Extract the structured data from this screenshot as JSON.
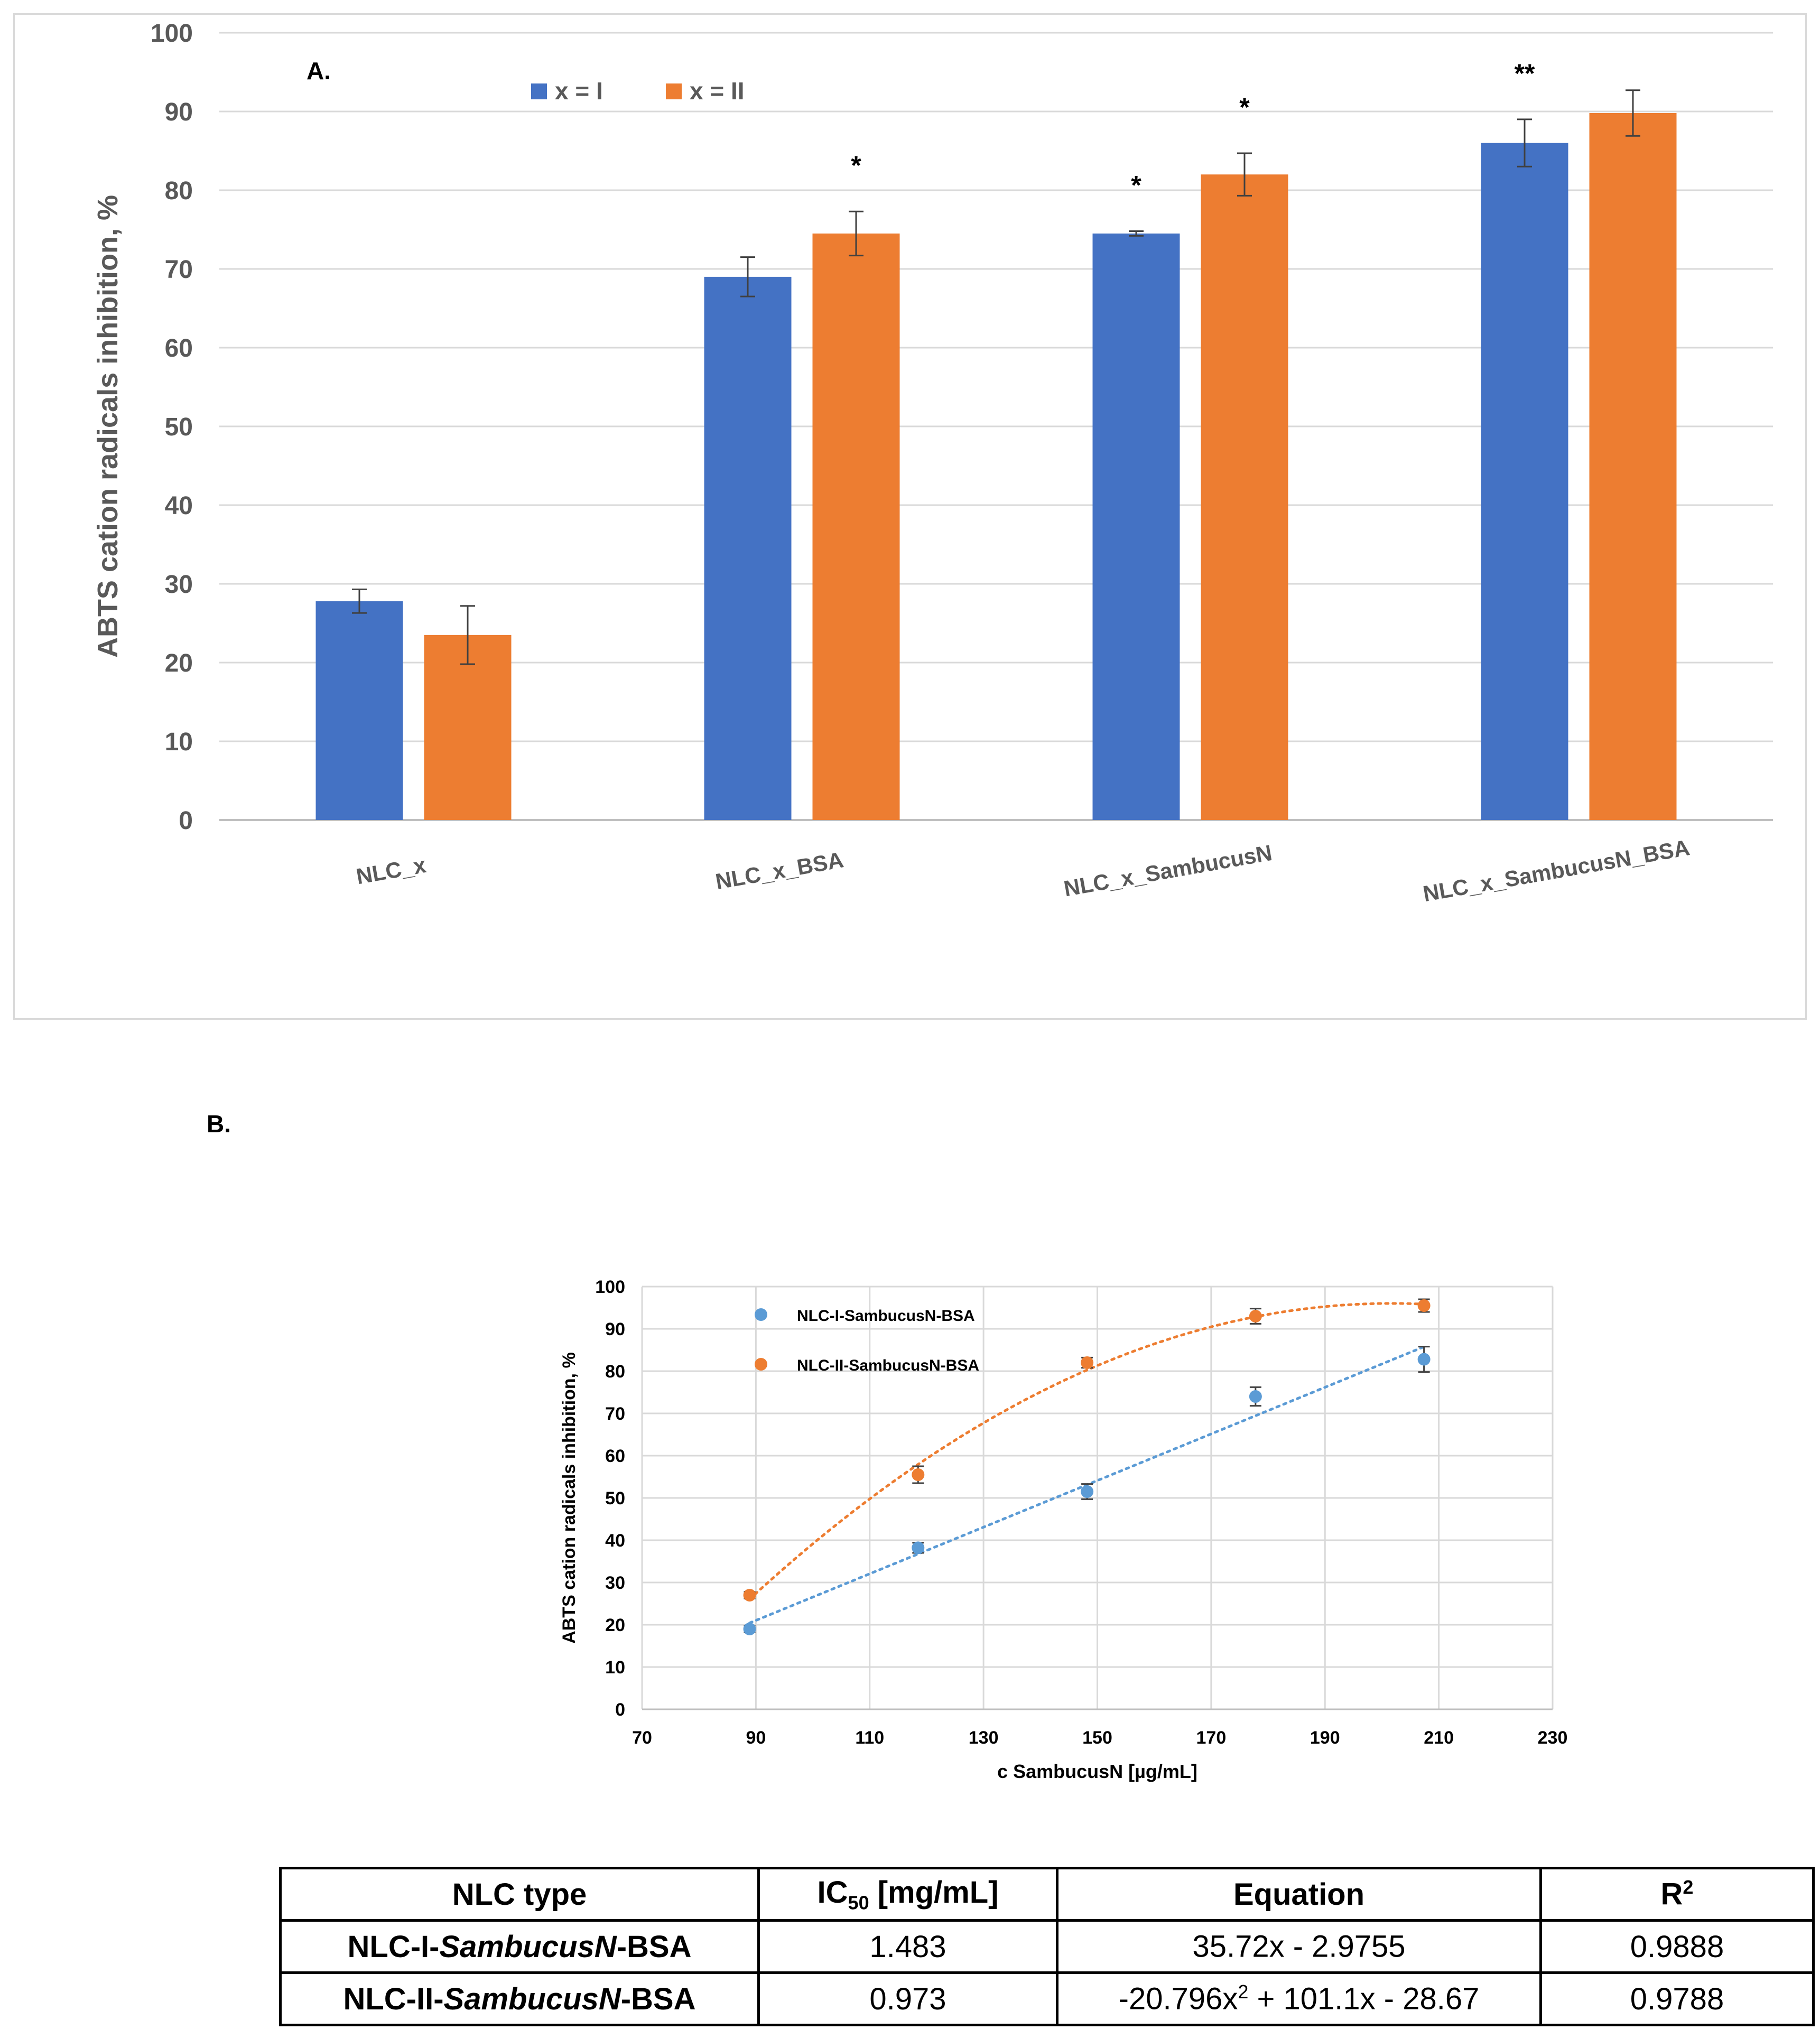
{
  "chart_data": [
    {
      "type": "bar",
      "panel_label": "A.",
      "title": "",
      "ylabel": "ABTS cation radicals inhibition, %",
      "xlabel": "",
      "ylim": [
        0,
        100
      ],
      "yticks": [
        0,
        10,
        20,
        30,
        40,
        50,
        60,
        70,
        80,
        90,
        100
      ],
      "grid": true,
      "legend_position": "top-left",
      "categories": [
        "NLC_x",
        "NLC_x_BSA",
        "NLC_x_SambucusN",
        "NLC_x_SambucusN_BSA"
      ],
      "series": [
        {
          "name": "x = I",
          "color": "#4472C4",
          "values": [
            27.8,
            69.0,
            74.5,
            86.0
          ],
          "errors": [
            1.5,
            2.5,
            0.3,
            3.0
          ],
          "significance": [
            "",
            "",
            "*",
            "**"
          ]
        },
        {
          "name": "x = II",
          "color": "#ED7D31",
          "values": [
            23.5,
            74.5,
            82.0,
            89.8
          ],
          "errors": [
            3.7,
            2.8,
            2.7,
            2.9
          ],
          "significance": [
            "",
            "*",
            "*",
            ""
          ]
        }
      ]
    },
    {
      "type": "scatter",
      "panel_label": "B.",
      "title": "",
      "xlabel": "c SambucusN [µg/mL]",
      "ylabel": "ABTS cation radicals inhibition, %",
      "xlim": [
        70,
        230
      ],
      "ylim": [
        0,
        100
      ],
      "xticks": [
        70,
        90,
        110,
        130,
        150,
        170,
        190,
        210,
        230
      ],
      "yticks": [
        0,
        10,
        20,
        30,
        40,
        50,
        60,
        70,
        80,
        90,
        100
      ],
      "grid": true,
      "legend_position": "top-left",
      "series": [
        {
          "name": "NLC-I-SambucusN-BSA",
          "color": "#5B9BD5",
          "x": [
            88.9,
            118.5,
            148.2,
            177.8,
            207.4
          ],
          "y": [
            19.0,
            38.2,
            51.5,
            74.0,
            82.8
          ],
          "errors": [
            0.8,
            1.2,
            1.8,
            2.2,
            3.0
          ],
          "trend": "linear"
        },
        {
          "name": "NLC-II-SambucusN-BSA",
          "color": "#ED7D31",
          "x": [
            88.9,
            118.5,
            148.2,
            177.8,
            207.4
          ],
          "y": [
            27.0,
            55.5,
            82.0,
            93.0,
            95.5
          ],
          "errors": [
            0.8,
            2.0,
            1.2,
            1.8,
            1.5
          ],
          "trend": "polynomial"
        }
      ]
    }
  ],
  "panel_b_label": "B.",
  "table": {
    "headers": {
      "type": "NLC type",
      "ic50_main": "IC",
      "ic50_sub": "50",
      "ic50_unit": " [mg/mL]",
      "equation": "Equation",
      "r2_main": "R",
      "r2_sup": "2"
    },
    "rows": [
      {
        "prefix": "NLC-I-",
        "italic": "SambucusN",
        "suffix": "-BSA",
        "ic50": "1.483",
        "eq_a": "35.72x - 2.9755",
        "eq_sup": "",
        "eq_b": "",
        "r2": "0.9888"
      },
      {
        "prefix": "NLC-II-",
        "italic": "SambucusN",
        "suffix": "-BSA",
        "ic50": "0.973",
        "eq_a": "-20.796x",
        "eq_sup": "2",
        "eq_b": " + 101.1x - 28.67",
        "r2": "0.9788"
      }
    ]
  }
}
